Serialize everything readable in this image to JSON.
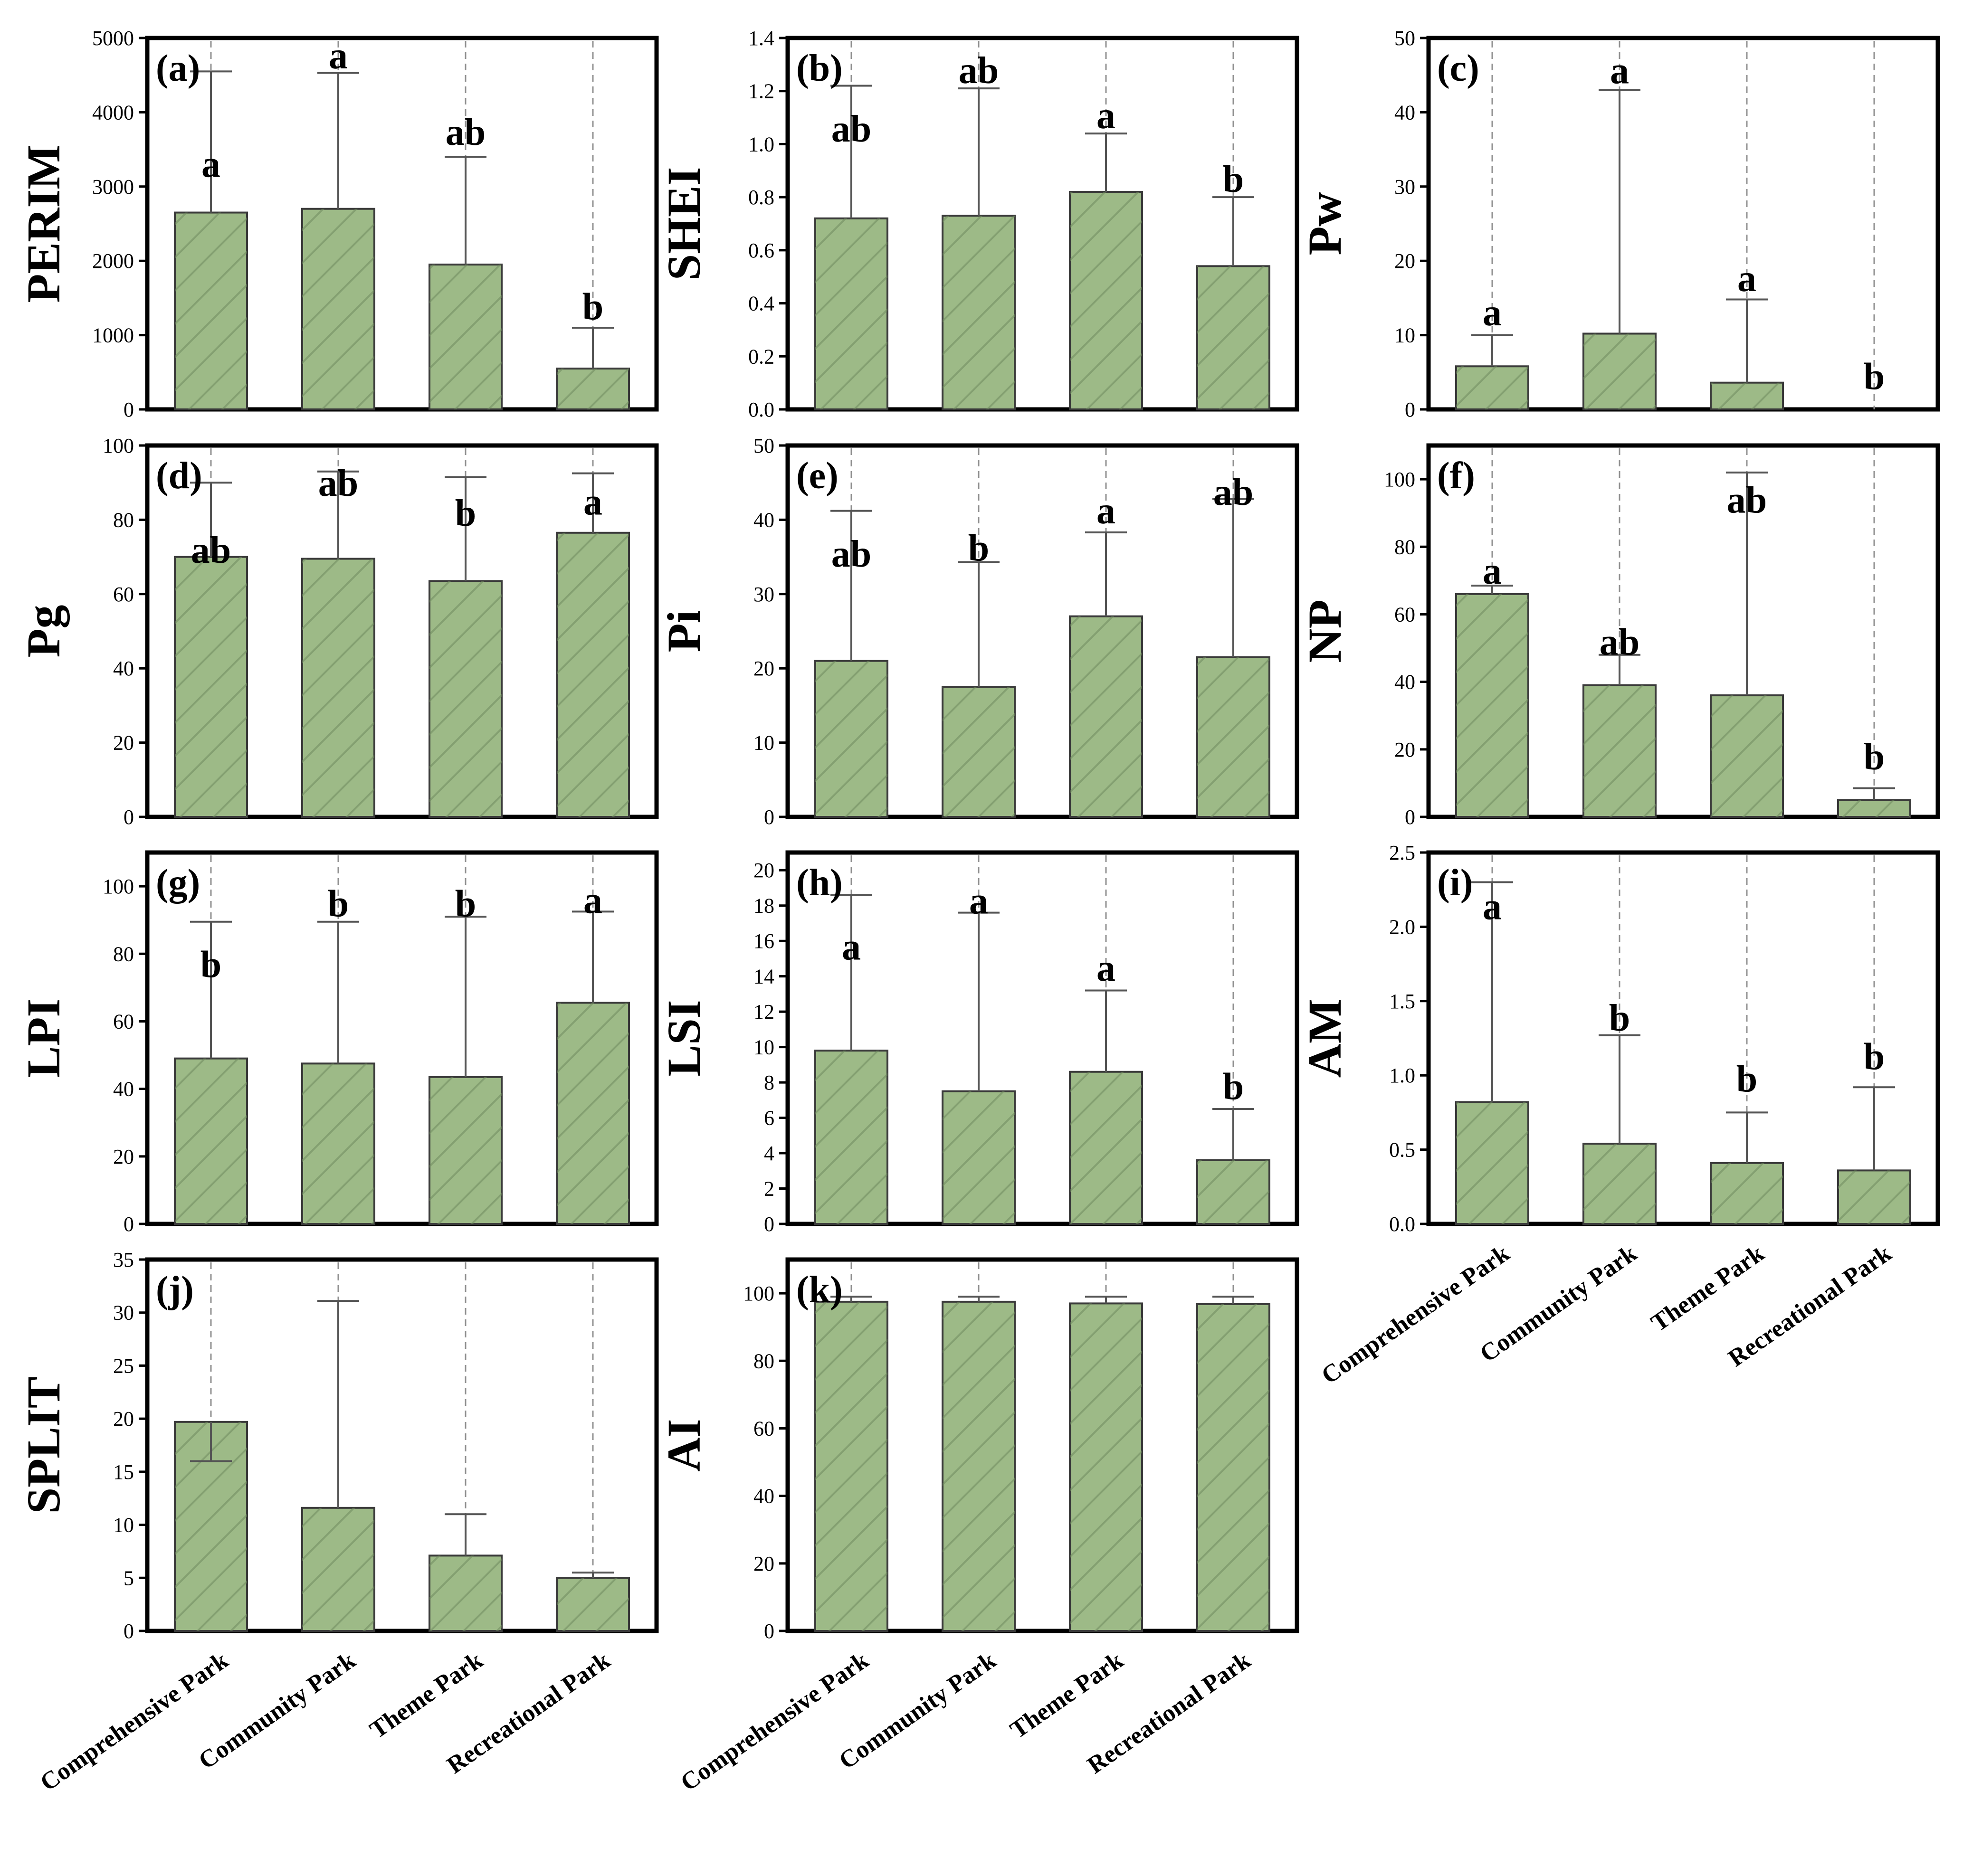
{
  "figure": {
    "categories": [
      "Comprehensive Park",
      "Community Park",
      "Theme Park",
      "Recreational Park"
    ],
    "bar_color": "#9dba87",
    "bar_edge_color": "#3a3a3a",
    "axis_color": "#000000"
  },
  "chart_data": [
    {
      "id": "a",
      "type": "bar",
      "label": "(a)",
      "ylabel": "PERIM",
      "ylim": [
        0,
        5000
      ],
      "ticks": [
        0,
        1000,
        2000,
        3000,
        4000,
        5000
      ],
      "values": [
        2650,
        2700,
        1950,
        550
      ],
      "errors": [
        4550,
        4530,
        3400,
        1100
      ],
      "letters": [
        "a",
        "a",
        "ab",
        "b"
      ],
      "letter_y": [
        3310,
        4770,
        3740,
        1390
      ]
    },
    {
      "id": "b",
      "type": "bar",
      "label": "(b)",
      "ylabel": "SHEI",
      "ylim": [
        0,
        1.4
      ],
      "ticks": [
        "0.0",
        "0.2",
        "0.4",
        "0.6",
        "0.8",
        "1.0",
        "1.2",
        "1.4"
      ],
      "values": [
        0.72,
        0.73,
        0.82,
        0.54
      ],
      "errors": [
        1.22,
        1.21,
        1.04,
        0.8
      ],
      "letters": [
        "ab",
        "ab",
        "a",
        "b"
      ],
      "letter_y": [
        1.06,
        1.28,
        1.11,
        0.87
      ]
    },
    {
      "id": "c",
      "type": "bar",
      "label": "(c)",
      "ylabel": "Pw",
      "ylim": [
        0,
        50
      ],
      "ticks": [
        0,
        10,
        20,
        30,
        40,
        50
      ],
      "values": [
        5.8,
        10.2,
        3.6,
        0
      ],
      "errors": [
        10.0,
        43.0,
        14.8,
        0
      ],
      "letters": [
        "a",
        "a",
        "a",
        "b"
      ],
      "letter_y": [
        13.1,
        45.7,
        17.7,
        4.5
      ]
    },
    {
      "id": "d",
      "type": "bar",
      "label": "(d)",
      "ylabel": "Pg",
      "ylim": [
        0,
        100
      ],
      "ticks": [
        0,
        20,
        40,
        60,
        80,
        100
      ],
      "values": [
        70,
        69.5,
        63.5,
        76.5
      ],
      "errors": [
        90,
        93,
        91.5,
        92.5
      ],
      "letters": [
        "ab",
        "ab",
        "b",
        "a"
      ],
      "letter_y": [
        72,
        90,
        82,
        85
      ]
    },
    {
      "id": "e",
      "type": "bar",
      "label": "(e)",
      "ylabel": "Pi",
      "ylim": [
        0,
        50
      ],
      "ticks": [
        0,
        10,
        20,
        30,
        40,
        50
      ],
      "values": [
        21,
        17.5,
        27,
        21.5
      ],
      "errors": [
        41.2,
        34.3,
        38.3,
        42.8
      ],
      "letters": [
        "ab",
        "b",
        "a",
        "ab"
      ],
      "letter_y": [
        35.5,
        36.3,
        41.3,
        43.8
      ]
    },
    {
      "id": "f",
      "type": "bar",
      "label": "(f)",
      "ylabel": "NP",
      "ylim": [
        0,
        110
      ],
      "ticks": [
        0,
        20,
        40,
        60,
        80,
        100
      ],
      "values": [
        66,
        39,
        36,
        5
      ],
      "errors": [
        68.5,
        48,
        102,
        8.5
      ],
      "letters": [
        "a",
        "ab",
        "ab",
        "b"
      ],
      "letter_y": [
        73,
        52,
        94,
        18
      ]
    },
    {
      "id": "g",
      "type": "bar",
      "label": "(g)",
      "ylabel": "LPI",
      "ylim": [
        0,
        110
      ],
      "ticks": [
        0,
        20,
        40,
        60,
        80,
        100
      ],
      "values": [
        49,
        47.5,
        43.5,
        65.5
      ],
      "errors": [
        89.5,
        89.5,
        91,
        92.5
      ],
      "letters": [
        "b",
        "b",
        "b",
        "a"
      ],
      "letter_y": [
        77,
        95,
        95,
        96
      ]
    },
    {
      "id": "h",
      "type": "bar",
      "label": "(h)",
      "ylabel": "LSI",
      "ylim": [
        0,
        21
      ],
      "ticks": [
        0,
        2,
        4,
        6,
        8,
        10,
        12,
        14,
        16,
        18,
        20
      ],
      "values": [
        9.8,
        7.5,
        8.6,
        3.6
      ],
      "errors": [
        18.6,
        17.6,
        13.2,
        6.5
      ],
      "letters": [
        "a",
        "a",
        "a",
        "b"
      ],
      "letter_y": [
        15.7,
        18.3,
        14.5,
        7.8
      ]
    },
    {
      "id": "i",
      "type": "bar",
      "label": "(i)",
      "ylabel": "AM",
      "ylim": [
        0,
        2.5
      ],
      "ticks": [
        "0.0",
        "0.5",
        "1.0",
        "1.5",
        "2.0",
        "2.5"
      ],
      "values": [
        0.82,
        0.54,
        0.41,
        0.36
      ],
      "errors": [
        2.3,
        1.27,
        0.75,
        0.92
      ],
      "letters": [
        "a",
        "b",
        "b",
        "b"
      ],
      "letter_y": [
        2.14,
        1.39,
        0.98,
        1.13
      ]
    },
    {
      "id": "j",
      "type": "bar",
      "label": "(j)",
      "ylabel": "SPLIT",
      "ylim": [
        0,
        35
      ],
      "ticks": [
        0,
        5,
        10,
        15,
        20,
        25,
        30,
        35
      ],
      "values": [
        19.7,
        11.6,
        7.1,
        5.0
      ],
      "errors": [
        16.0,
        31.1,
        11.0,
        5.5
      ],
      "letters": [],
      "letter_y": []
    },
    {
      "id": "k",
      "type": "bar",
      "label": "(k)",
      "ylabel": "AI",
      "ylim": [
        0,
        110
      ],
      "ticks": [
        0,
        20,
        40,
        60,
        80,
        100
      ],
      "values": [
        97.5,
        97.5,
        97,
        96.8
      ],
      "errors": [
        99,
        99,
        99,
        99
      ],
      "letters": [],
      "letter_y": []
    }
  ]
}
